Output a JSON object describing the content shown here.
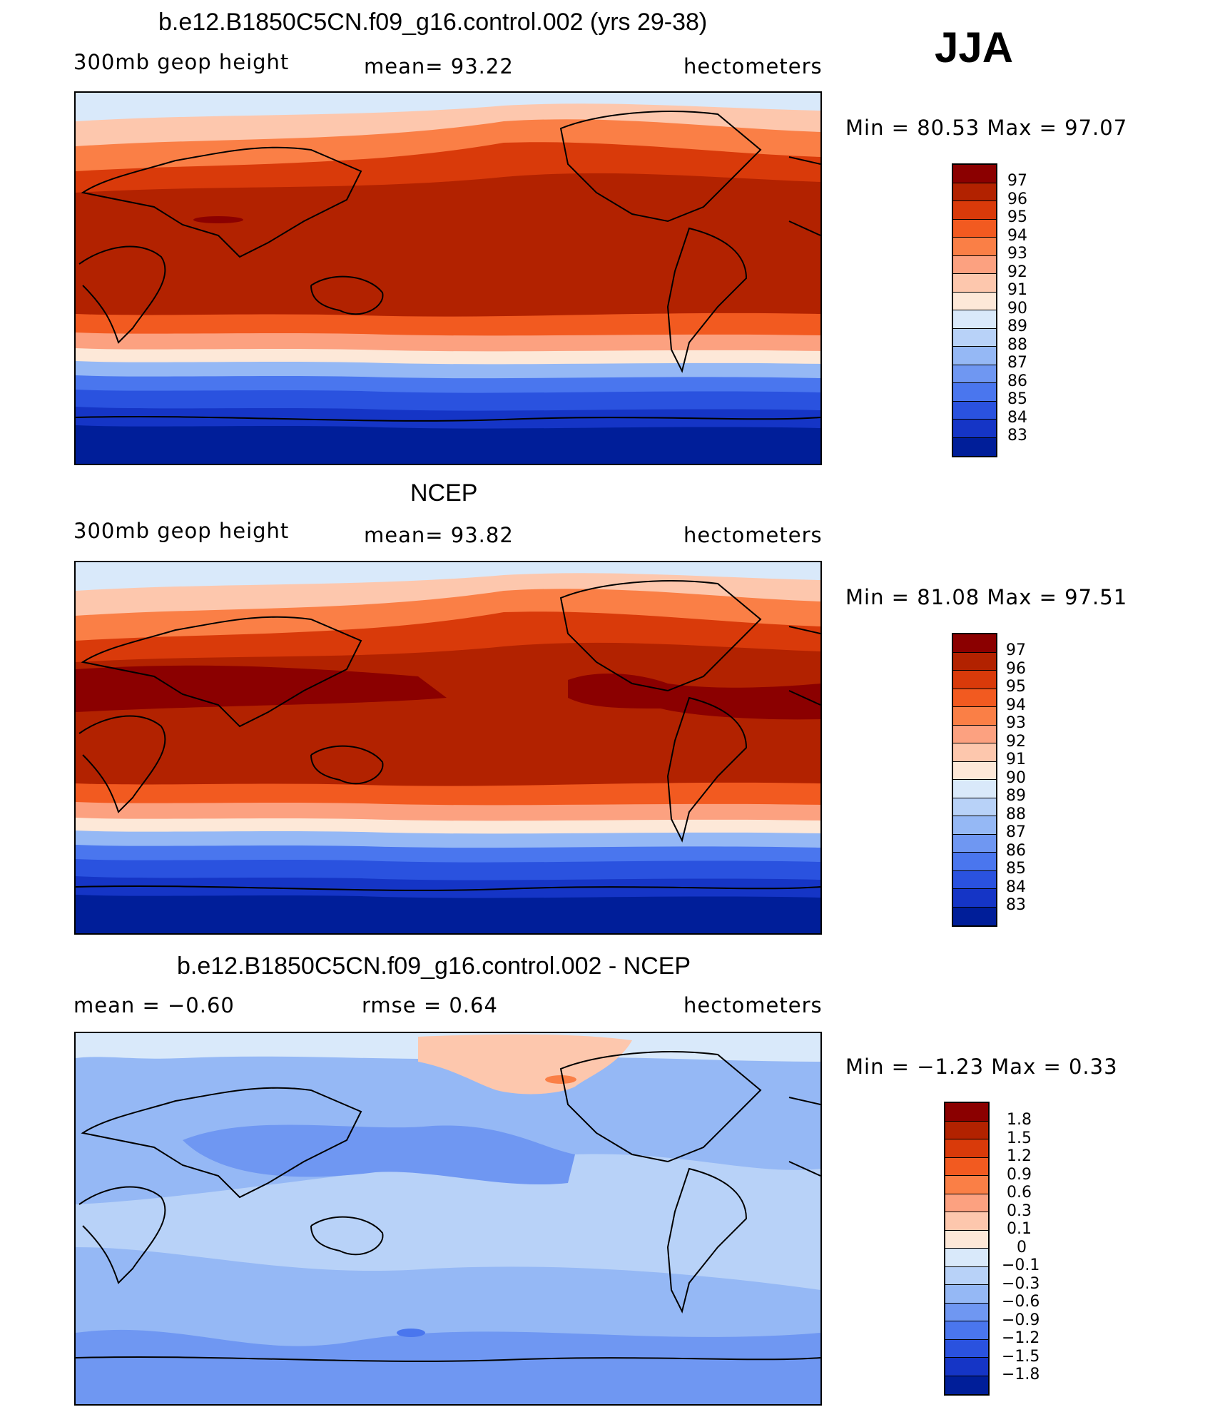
{
  "season": "JJA",
  "panels": [
    {
      "title": "b.e12.B1850C5CN.f09_g16.control.002 (yrs 29-38)",
      "left_label": "300mb geop height",
      "mid_label": "mean=   93.22",
      "right_label": "hectometers",
      "minmax": "Min =   80.53 Max =   97.07",
      "levels": [
        "97",
        "96",
        "95",
        "94",
        "93",
        "92",
        "91",
        "90",
        "89",
        "88",
        "87",
        "86",
        "85",
        "84",
        "83"
      ],
      "colors": [
        "#8b0000",
        "#b22200",
        "#d93a0a",
        "#f25a20",
        "#fa7f46",
        "#fca180",
        "#fdc7ad",
        "#fde8d8",
        "#d9e9fa",
        "#b8d2f8",
        "#95b8f5",
        "#6f97f2",
        "#4a76ee",
        "#2a52df",
        "#1535c6",
        "#001e99"
      ]
    },
    {
      "title": "NCEP",
      "left_label": "300mb geop height",
      "mid_label": "mean=   93.82",
      "right_label": "hectometers",
      "minmax": "Min =   81.08 Max =   97.51",
      "levels": [
        "97",
        "96",
        "95",
        "94",
        "93",
        "92",
        "91",
        "90",
        "89",
        "88",
        "87",
        "86",
        "85",
        "84",
        "83"
      ],
      "colors": [
        "#8b0000",
        "#b22200",
        "#d93a0a",
        "#f25a20",
        "#fa7f46",
        "#fca180",
        "#fdc7ad",
        "#fde8d8",
        "#d9e9fa",
        "#b8d2f8",
        "#95b8f5",
        "#6f97f2",
        "#4a76ee",
        "#2a52df",
        "#1535c6",
        "#001e99"
      ]
    },
    {
      "title": "b.e12.B1850C5CN.f09_g16.control.002 - NCEP",
      "left_label": "mean =   −0.60",
      "mid_label": "rmse =    0.64",
      "right_label": "hectometers",
      "minmax": "Min =  −1.23 Max =    0.33",
      "levels": [
        "1.8",
        "1.5",
        "1.2",
        "0.9",
        "0.6",
        "0.3",
        "0.1",
        "0",
        "−0.1",
        "−0.3",
        "−0.6",
        "−0.9",
        "−1.2",
        "−1.5",
        "−1.8"
      ],
      "colors": [
        "#8b0000",
        "#b22200",
        "#d93a0a",
        "#f25a20",
        "#fa7f46",
        "#fca180",
        "#fdc7ad",
        "#fde8d8",
        "#d9e9fa",
        "#b8d2f8",
        "#95b8f5",
        "#6f97f2",
        "#4a76ee",
        "#2a52df",
        "#1535c6",
        "#001e99"
      ]
    }
  ]
}
